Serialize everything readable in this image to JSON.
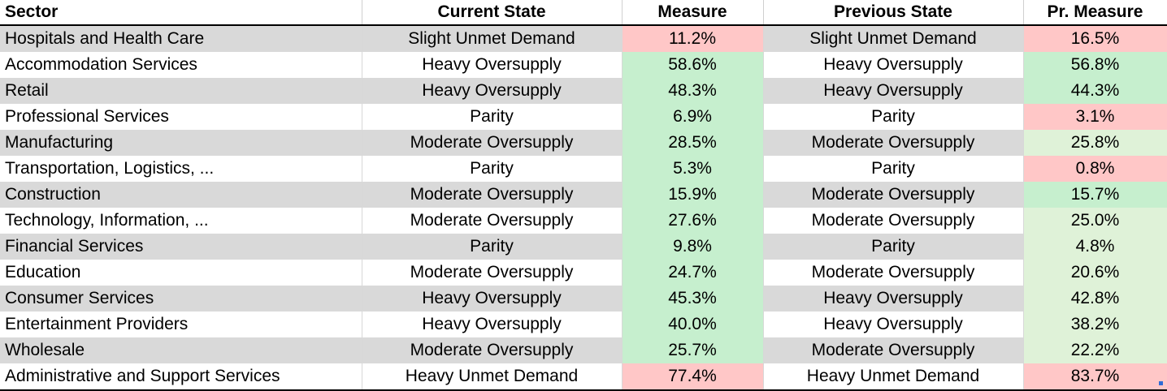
{
  "headers": {
    "sector": "Sector",
    "current_state": "Current State",
    "measure": "Measure",
    "previous_state": "Previous State",
    "pr_measure": "Pr. Measure"
  },
  "colors": {
    "unmet_demand_fill": "#ffc7c7",
    "oversupply_fill": "#c6efce",
    "mild_fill": "#dff2d8",
    "band_fill": "#d9d9d9"
  },
  "rows": [
    {
      "sector": "Hospitals and Health Care",
      "current_state": "Slight Unmet Demand",
      "measure": "11.2%",
      "previous_state": "Slight Unmet Demand",
      "pr_measure": "16.5%"
    },
    {
      "sector": "Accommodation Services",
      "current_state": "Heavy Oversupply",
      "measure": "58.6%",
      "previous_state": "Heavy Oversupply",
      "pr_measure": "56.8%"
    },
    {
      "sector": "Retail",
      "current_state": "Heavy Oversupply",
      "measure": "48.3%",
      "previous_state": "Heavy Oversupply",
      "pr_measure": "44.3%"
    },
    {
      "sector": "Professional Services",
      "current_state": "Parity",
      "measure": "6.9%",
      "previous_state": "Parity",
      "pr_measure": "3.1%"
    },
    {
      "sector": "Manufacturing",
      "current_state": "Moderate Oversupply",
      "measure": "28.5%",
      "previous_state": "Moderate Oversupply",
      "pr_measure": "25.8%"
    },
    {
      "sector": "Transportation, Logistics, ...",
      "current_state": "Parity",
      "measure": "5.3%",
      "previous_state": "Parity",
      "pr_measure": "0.8%"
    },
    {
      "sector": "Construction",
      "current_state": "Moderate Oversupply",
      "measure": "15.9%",
      "previous_state": "Moderate Oversupply",
      "pr_measure": "15.7%"
    },
    {
      "sector": "Technology, Information, ...",
      "current_state": "Moderate Oversupply",
      "measure": "27.6%",
      "previous_state": "Moderate Oversupply",
      "pr_measure": "25.0%"
    },
    {
      "sector": "Financial Services",
      "current_state": "Parity",
      "measure": "9.8%",
      "previous_state": "Parity",
      "pr_measure": "4.8%"
    },
    {
      "sector": "Education",
      "current_state": "Moderate Oversupply",
      "measure": "24.7%",
      "previous_state": "Moderate Oversupply",
      "pr_measure": "20.6%"
    },
    {
      "sector": "Consumer Services",
      "current_state": "Heavy Oversupply",
      "measure": "45.3%",
      "previous_state": "Heavy Oversupply",
      "pr_measure": "42.8%"
    },
    {
      "sector": "Entertainment Providers",
      "current_state": "Heavy Oversupply",
      "measure": "40.0%",
      "previous_state": "Heavy Oversupply",
      "pr_measure": "38.2%"
    },
    {
      "sector": "Wholesale",
      "current_state": "Moderate Oversupply",
      "measure": "25.7%",
      "previous_state": "Moderate Oversupply",
      "pr_measure": "22.2%"
    },
    {
      "sector": "Administrative and Support Services",
      "current_state": "Heavy Unmet Demand",
      "measure": "77.4%",
      "previous_state": "Heavy Unmet Demand",
      "pr_measure": "83.7%"
    }
  ]
}
